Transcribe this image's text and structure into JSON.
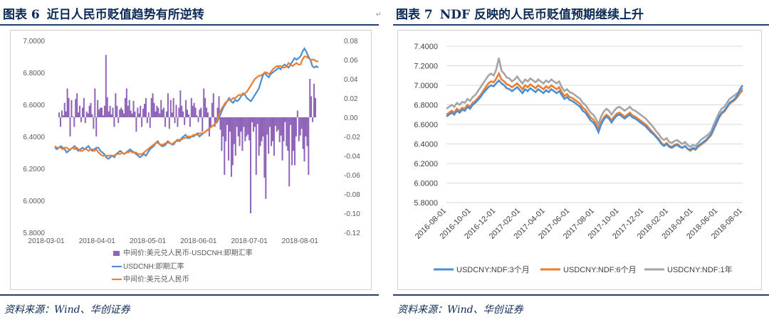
{
  "figures": [
    {
      "number": "图表 6",
      "title": "近日人民币贬值趋势有所逆转",
      "source": "资料来源：Wind、华创证券"
    },
    {
      "number": "图表 7",
      "title": "NDF 反映的人民币贬值预期继续上升",
      "source": "资料来源：Wind、华创证券"
    }
  ],
  "chart_data": [
    {
      "type": "bar+line",
      "title": "",
      "x_ticks": [
        "2018-03-01",
        "2018-04-01",
        "2018-05-01",
        "2018-06-01",
        "2018-07-01",
        "2018-08-01"
      ],
      "left_axis": {
        "min": 5.8,
        "max": 7.0,
        "ticks": [
          "7.0000",
          "6.8000",
          "6.6000",
          "6.4000",
          "6.2000",
          "6.0000",
          "5.8000"
        ]
      },
      "right_axis": {
        "min": -0.12,
        "max": 0.08,
        "ticks": [
          "0.08",
          "0.06",
          "0.04",
          "0.02",
          "0.00",
          "-0.02",
          "-0.04",
          "-0.06",
          "-0.08",
          "-0.10",
          "-0.12"
        ]
      },
      "legend": [
        {
          "name": "中间价:美元兑人民币-USDCNH:即期汇率",
          "kind": "bar",
          "color": "#8e63b8"
        },
        {
          "name": "USDCNH:即期汇率",
          "kind": "line",
          "color": "#4d8fd1"
        },
        {
          "name": "中间价:美元兑人民币",
          "kind": "line",
          "color": "#ed7d31"
        }
      ],
      "spread": [
        0.005,
        -0.01,
        0.007,
        0.002,
        0.015,
        0.006,
        0.03,
        0.02,
        -0.02,
        0.018,
        0.001,
        -0.01,
        0.019,
        0.025,
        0.005,
        0.012,
        -0.005,
        0.01,
        0.02,
        -0.006,
        0.006,
        0.004,
        0.012,
        0.015,
        0.003,
        -0.012,
        0.03,
        -0.02,
        0.018,
        0.008,
        0.01,
        0.01,
        0.002,
        0.012,
        0.065,
        0.021,
        0.006,
        0.012,
        0.003,
        0.01,
        -0.01,
        0.025,
        0.012,
        -0.006,
        0.008,
        0.01,
        0.008,
        0.004,
        0.02,
        0.03,
        0.012,
        0.018,
        0.007,
        0.004,
        0.017,
        0.006,
        -0.015,
        0.01,
        0.004,
        0.012,
        -0.01,
        0.009,
        0.014,
        0.02,
        -0.006,
        0.005,
        -0.011,
        0.02,
        0.025,
        0.015,
        0.006,
        0.012,
        0.01,
        0.004,
        0.018,
        0.008,
        0.01,
        -0.01,
        0.006,
        0.025,
        -0.012,
        0.018,
        0.005,
        0.02,
        -0.006,
        0.013,
        -0.01,
        0.01,
        0.028,
        0.012,
        0.006,
        -0.008,
        0.018,
        0.008,
        0.003,
        -0.01,
        0.02,
        0.012,
        0.015,
        0.01,
        0.002,
        -0.005,
        0.008,
        0.01,
        -0.015,
        0.03,
        0.02,
        0.01,
        0.005,
        -0.02,
        -0.01,
        0.015,
        0.025,
        -0.01,
        -0.005,
        0.01,
        0.022,
        -0.013,
        -0.035,
        -0.02,
        -0.06,
        -0.025,
        -0.008,
        -0.045,
        -0.015,
        -0.062,
        -0.05,
        -0.028,
        -0.04,
        -0.01,
        -0.02,
        -0.03,
        -0.015,
        -0.035,
        -0.01,
        -0.025,
        -0.02,
        -0.018,
        -0.024,
        -0.1,
        -0.005,
        -0.015,
        -0.01,
        -0.06,
        -0.007,
        -0.04,
        -0.03,
        -0.025,
        -0.02,
        -0.063,
        -0.085,
        -0.018,
        -0.038,
        -0.01,
        -0.03,
        -0.025,
        -0.04,
        -0.009,
        -0.015,
        -0.013,
        -0.026,
        -0.019,
        -0.045,
        -0.025,
        -0.005,
        -0.03,
        -0.035,
        -0.072,
        -0.008,
        -0.05,
        -0.035,
        -0.05,
        -0.02,
        0.007,
        -0.025,
        -0.019,
        -0.012,
        -0.033,
        -0.046,
        -0.02,
        -0.03,
        -0.06,
        0.04,
        0.022,
        -0.005,
        0.035,
        0.02
      ],
      "usdcnh": [
        6.33,
        6.32,
        6.33,
        6.34,
        6.33,
        6.32,
        6.3,
        6.31,
        6.32,
        6.33,
        6.34,
        6.32,
        6.31,
        6.32,
        6.33,
        6.32,
        6.33,
        6.34,
        6.32,
        6.31,
        6.32,
        6.33,
        6.33,
        6.31,
        6.3,
        6.29,
        6.27,
        6.26,
        6.27,
        6.28,
        6.27,
        6.29,
        6.3,
        6.31,
        6.3,
        6.29,
        6.3,
        6.31,
        6.32,
        6.31,
        6.3,
        6.29,
        6.28,
        6.27,
        6.28,
        6.29,
        6.28,
        6.3,
        6.32,
        6.33,
        6.34,
        6.36,
        6.37,
        6.35,
        6.34,
        6.34,
        6.35,
        6.37,
        6.36,
        6.35,
        6.35,
        6.37,
        6.38,
        6.37,
        6.39,
        6.4,
        6.41,
        6.39,
        6.39,
        6.4,
        6.4,
        6.41,
        6.42,
        6.4,
        6.41,
        6.42,
        6.43,
        6.44,
        6.45,
        6.46,
        6.47,
        6.48,
        6.49,
        6.52,
        6.55,
        6.58,
        6.6,
        6.62,
        6.64,
        6.62,
        6.61,
        6.63,
        6.62,
        6.63,
        6.65,
        6.67,
        6.66,
        6.64,
        6.63,
        6.62,
        6.64,
        6.66,
        6.68,
        6.7,
        6.74,
        6.78,
        6.8,
        6.78,
        6.77,
        6.79,
        6.8,
        6.81,
        6.82,
        6.83,
        6.82,
        6.84,
        6.85,
        6.84,
        6.83,
        6.85,
        6.87,
        6.89,
        6.88,
        6.89,
        6.9,
        6.93,
        6.95,
        6.93,
        6.9,
        6.88,
        6.84,
        6.83,
        6.84,
        6.83
      ],
      "mid": [
        6.34,
        6.33,
        6.33,
        6.33,
        6.32,
        6.33,
        6.33,
        6.32,
        6.32,
        6.33,
        6.32,
        6.33,
        6.32,
        6.31,
        6.31,
        6.32,
        6.32,
        6.31,
        6.32,
        6.32,
        6.31,
        6.32,
        6.3,
        6.29,
        6.28,
        6.28,
        6.28,
        6.28,
        6.28,
        6.28,
        6.28,
        6.29,
        6.29,
        6.29,
        6.3,
        6.29,
        6.3,
        6.3,
        6.31,
        6.3,
        6.3,
        6.3,
        6.29,
        6.29,
        6.29,
        6.3,
        6.31,
        6.32,
        6.33,
        6.34,
        6.35,
        6.36,
        6.36,
        6.35,
        6.35,
        6.35,
        6.36,
        6.36,
        6.36,
        6.35,
        6.36,
        6.37,
        6.37,
        6.38,
        6.38,
        6.39,
        6.39,
        6.4,
        6.4,
        6.4,
        6.41,
        6.41,
        6.41,
        6.42,
        6.42,
        6.42,
        6.43,
        6.44,
        6.45,
        6.46,
        6.47,
        6.48,
        6.5,
        6.54,
        6.57,
        6.59,
        6.61,
        6.62,
        6.63,
        6.63,
        6.64,
        6.64,
        6.65,
        6.66,
        6.66,
        6.66,
        6.67,
        6.68,
        6.7,
        6.72,
        6.74,
        6.76,
        6.77,
        6.78,
        6.78,
        6.79,
        6.8,
        6.8,
        6.79,
        6.8,
        6.82,
        6.83,
        6.84,
        6.84,
        6.84,
        6.83,
        6.83,
        6.84,
        6.86,
        6.85,
        6.84,
        6.85,
        6.86,
        6.85,
        6.85,
        6.88,
        6.9,
        6.9,
        6.89,
        6.88,
        6.88,
        6.88,
        6.87,
        6.87
      ]
    },
    {
      "type": "line",
      "title": "",
      "y_axis": {
        "min": 5.8,
        "max": 7.4,
        "ticks": [
          "7.4000",
          "7.2000",
          "7.0000",
          "6.8000",
          "6.6000",
          "6.4000",
          "6.2000",
          "6.0000",
          "5.8000"
        ]
      },
      "x_ticks": [
        "2016-08-01",
        "2016-10-01",
        "2016-12-01",
        "2017-02-01",
        "2017-04-01",
        "2017-06-01",
        "2017-08-01",
        "2017-10-01",
        "2017-12-01",
        "2018-02-01",
        "2018-04-01",
        "2018-06-01",
        "2018-08-01"
      ],
      "legend": [
        {
          "name": "USDCNY:NDF:3个月",
          "color": "#4d8fd1"
        },
        {
          "name": "USDCNY:NDF:6个月",
          "color": "#ed7d31"
        },
        {
          "name": "USDCNY:NDF:1年",
          "color": "#a5a5a5"
        }
      ],
      "series_3m": [
        6.68,
        6.7,
        6.72,
        6.7,
        6.74,
        6.72,
        6.75,
        6.74,
        6.78,
        6.76,
        6.8,
        6.82,
        6.85,
        6.88,
        6.92,
        6.95,
        6.98,
        7.0,
        6.99,
        7.02,
        7.05,
        7.02,
        7.0,
        6.97,
        6.96,
        6.94,
        6.96,
        6.98,
        6.95,
        6.92,
        6.96,
        6.94,
        6.97,
        6.95,
        6.93,
        6.96,
        6.94,
        6.92,
        6.95,
        6.93,
        6.96,
        6.94,
        6.92,
        6.94,
        6.9,
        6.86,
        6.88,
        6.85,
        6.84,
        6.82,
        6.8,
        6.78,
        6.74,
        6.72,
        6.68,
        6.64,
        6.62,
        6.58,
        6.52,
        6.6,
        6.65,
        6.68,
        6.66,
        6.62,
        6.66,
        6.69,
        6.7,
        6.68,
        6.66,
        6.68,
        6.7,
        6.67,
        6.66,
        6.64,
        6.62,
        6.6,
        6.58,
        6.55,
        6.52,
        6.5,
        6.47,
        6.44,
        6.4,
        6.38,
        6.4,
        6.37,
        6.36,
        6.38,
        6.39,
        6.37,
        6.36,
        6.38,
        6.35,
        6.34,
        6.36,
        6.35,
        6.38,
        6.4,
        6.42,
        6.44,
        6.47,
        6.5,
        6.56,
        6.62,
        6.68,
        6.72,
        6.74,
        6.78,
        6.82,
        6.84,
        6.86,
        6.9,
        6.96,
        7.0
      ],
      "series_6m": [
        6.7,
        6.72,
        6.74,
        6.72,
        6.76,
        6.74,
        6.77,
        6.76,
        6.8,
        6.78,
        6.82,
        6.84,
        6.87,
        6.9,
        6.94,
        6.98,
        7.02,
        7.04,
        7.03,
        7.07,
        7.12,
        7.06,
        7.04,
        7.01,
        7.0,
        6.98,
        7.0,
        7.02,
        6.99,
        6.96,
        7.0,
        6.98,
        7.01,
        6.99,
        6.97,
        7.0,
        6.98,
        6.96,
        6.99,
        6.97,
        7.0,
        6.98,
        6.96,
        6.98,
        6.93,
        6.89,
        6.91,
        6.88,
        6.87,
        6.85,
        6.83,
        6.81,
        6.77,
        6.75,
        6.71,
        6.67,
        6.65,
        6.61,
        6.55,
        6.62,
        6.67,
        6.7,
        6.68,
        6.64,
        6.68,
        6.71,
        6.72,
        6.7,
        6.68,
        6.7,
        6.72,
        6.69,
        6.68,
        6.66,
        6.64,
        6.62,
        6.6,
        6.57,
        6.54,
        6.51,
        6.48,
        6.45,
        6.41,
        6.39,
        6.41,
        6.38,
        6.37,
        6.39,
        6.4,
        6.38,
        6.36,
        6.38,
        6.35,
        6.33,
        6.35,
        6.34,
        6.37,
        6.39,
        6.41,
        6.43,
        6.46,
        6.49,
        6.55,
        6.61,
        6.67,
        6.71,
        6.73,
        6.77,
        6.81,
        6.83,
        6.85,
        6.88,
        6.92,
        6.95
      ],
      "series_1y": [
        6.76,
        6.78,
        6.8,
        6.78,
        6.82,
        6.8,
        6.83,
        6.82,
        6.86,
        6.84,
        6.88,
        6.9,
        6.94,
        6.98,
        7.02,
        7.06,
        7.1,
        7.12,
        7.1,
        7.16,
        7.28,
        7.15,
        7.12,
        7.08,
        7.07,
        7.04,
        7.06,
        7.09,
        7.05,
        7.02,
        7.06,
        7.04,
        7.07,
        7.05,
        7.03,
        7.06,
        7.04,
        7.02,
        7.05,
        7.03,
        7.06,
        7.04,
        7.02,
        7.04,
        6.98,
        6.94,
        6.96,
        6.93,
        6.92,
        6.9,
        6.88,
        6.86,
        6.82,
        6.8,
        6.76,
        6.72,
        6.7,
        6.66,
        6.6,
        6.68,
        6.73,
        6.76,
        6.74,
        6.7,
        6.74,
        6.77,
        6.78,
        6.76,
        6.74,
        6.76,
        6.78,
        6.75,
        6.74,
        6.72,
        6.7,
        6.68,
        6.66,
        6.63,
        6.6,
        6.57,
        6.53,
        6.5,
        6.46,
        6.44,
        6.46,
        6.42,
        6.41,
        6.43,
        6.44,
        6.42,
        6.4,
        6.42,
        6.39,
        6.37,
        6.39,
        6.38,
        6.41,
        6.44,
        6.46,
        6.48,
        6.5,
        6.53,
        6.6,
        6.66,
        6.72,
        6.76,
        6.78,
        6.82,
        6.86,
        6.88,
        6.9,
        6.92,
        6.94,
        6.97
      ]
    }
  ]
}
